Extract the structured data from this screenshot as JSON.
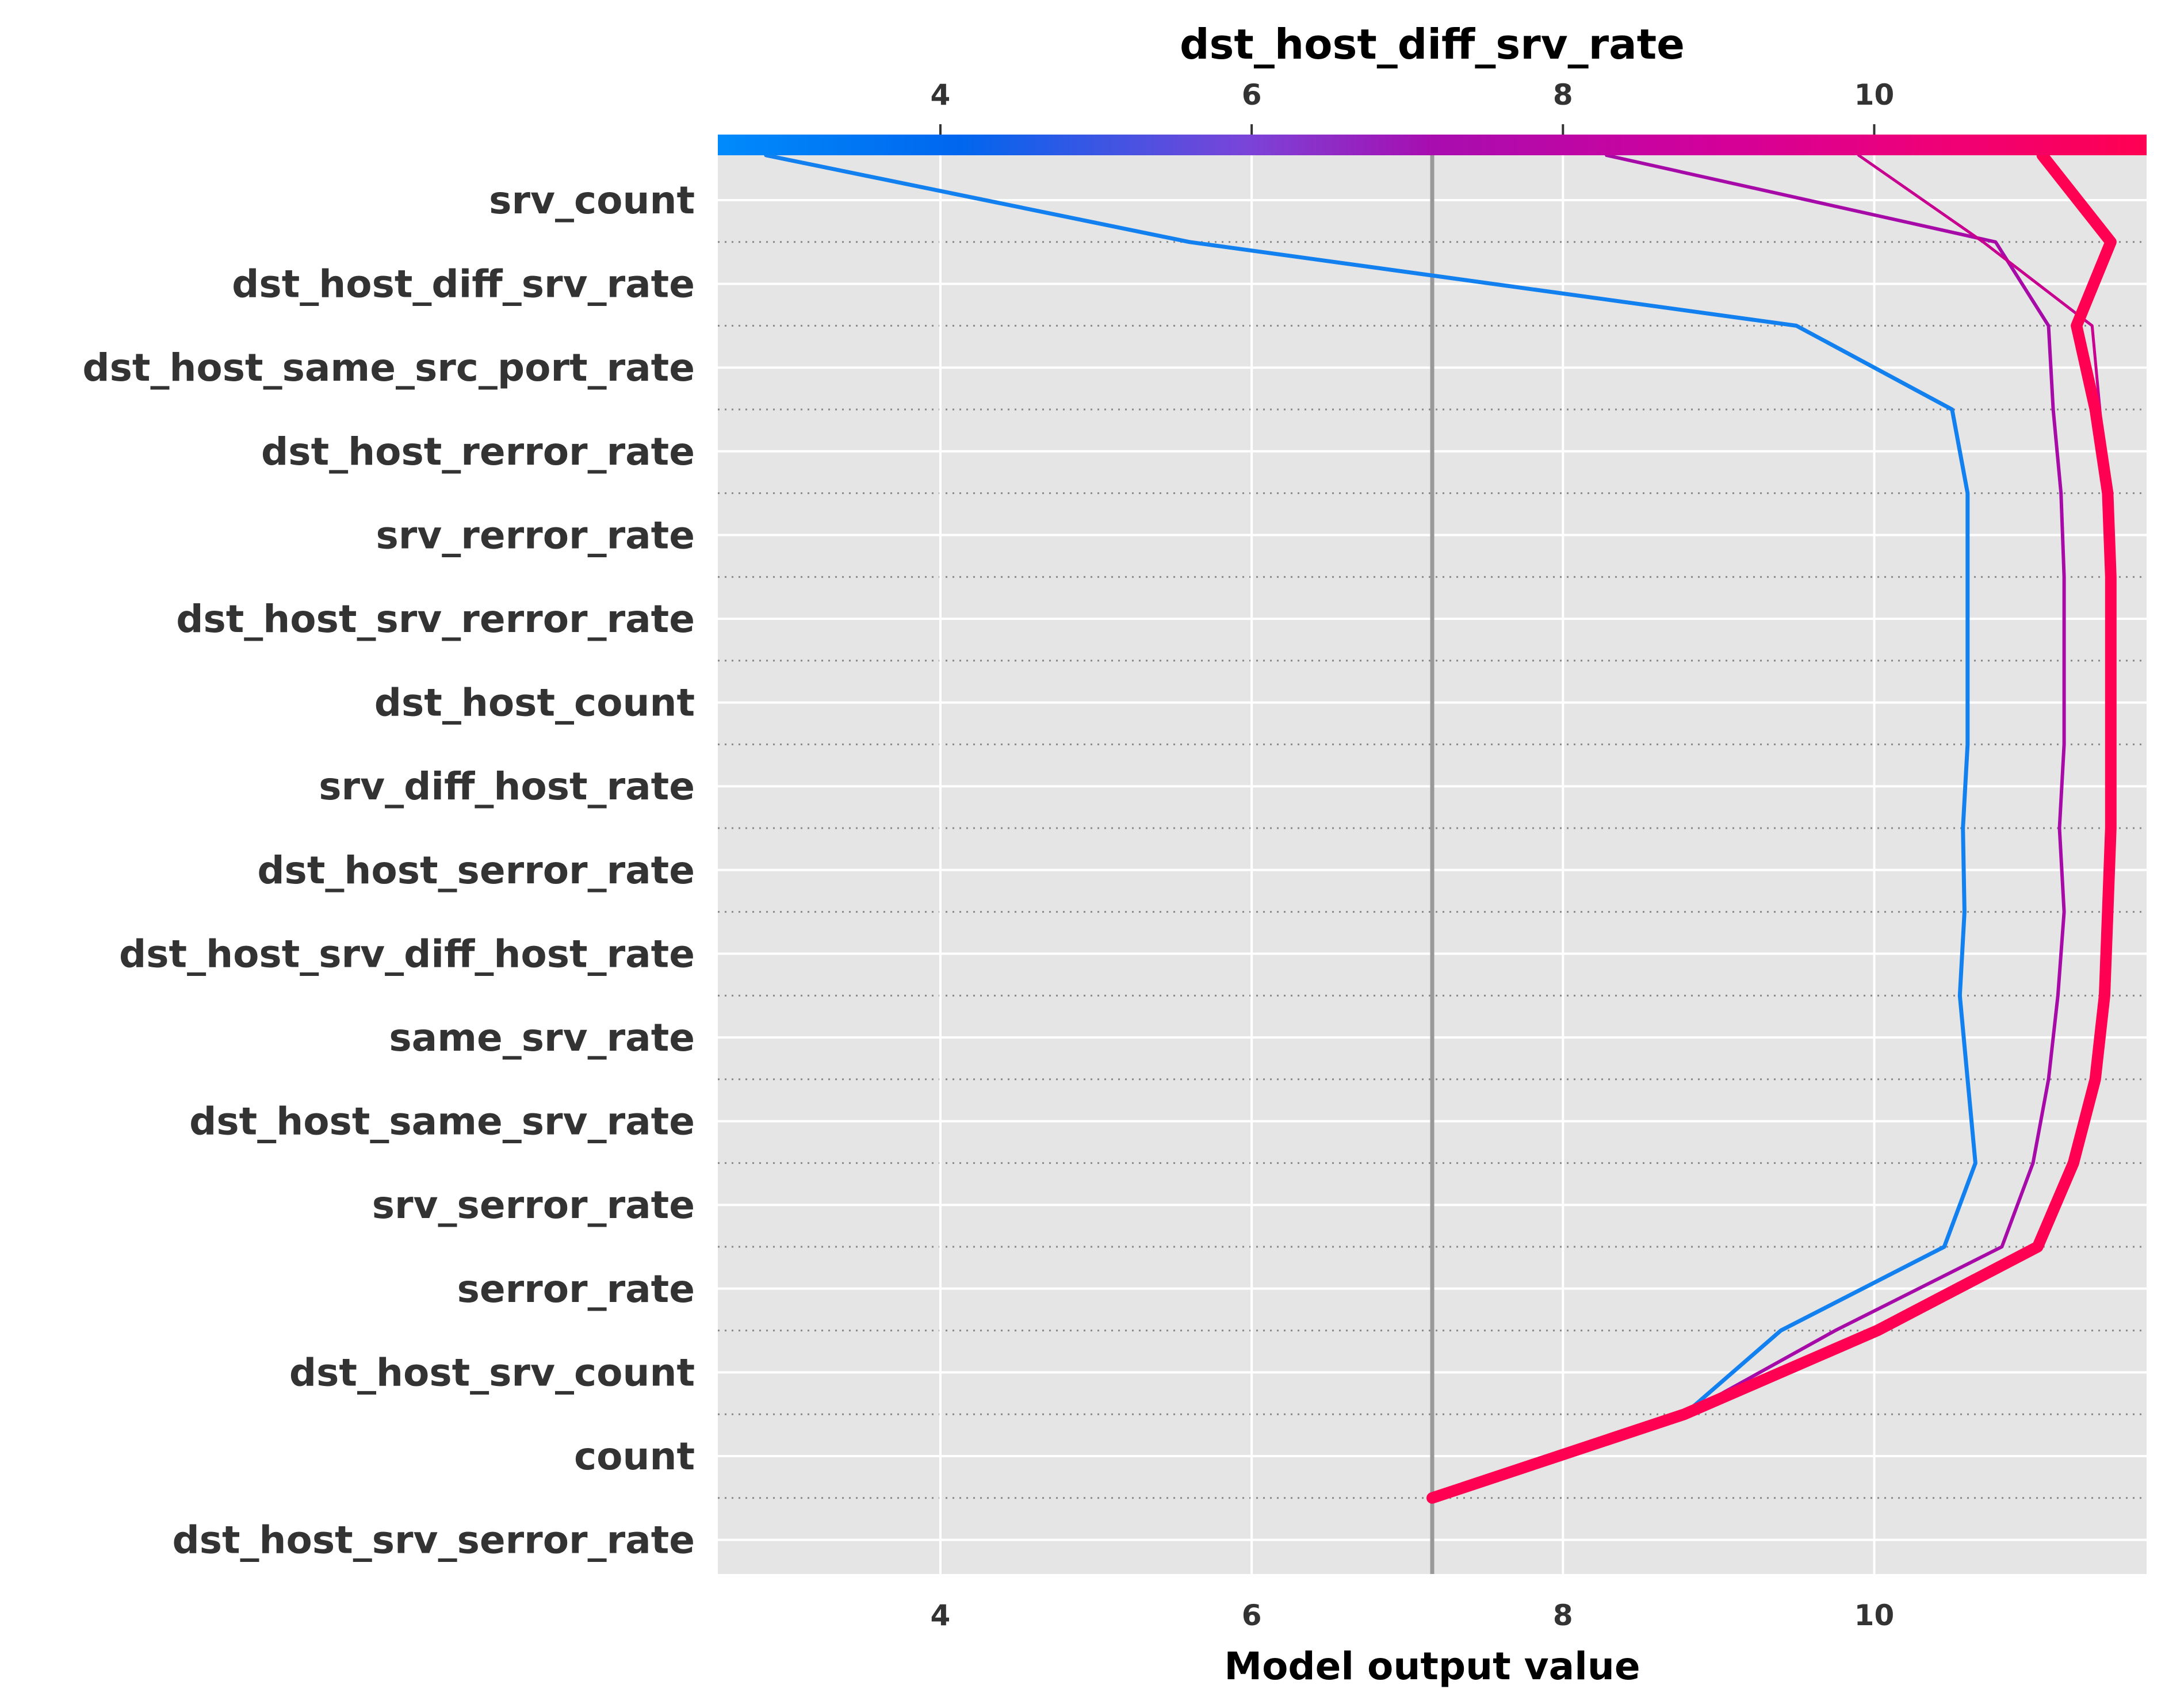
{
  "chart_data": {
    "type": "line",
    "title": "dst_host_diff_srv_rate",
    "xlabel": "Model output value",
    "ylabel": "",
    "xlim": [
      2.57,
      11.75
    ],
    "xticks": [
      4,
      6,
      8,
      10
    ],
    "top_ticks": [
      4,
      6,
      8,
      10
    ],
    "base_value": 7.16,
    "features": [
      "srv_count",
      "dst_host_diff_srv_rate",
      "dst_host_same_src_port_rate",
      "dst_host_rerror_rate",
      "srv_rerror_rate",
      "dst_host_srv_rerror_rate",
      "dst_host_count",
      "srv_diff_host_rate",
      "dst_host_serror_rate",
      "dst_host_srv_diff_host_rate",
      "same_srv_rate",
      "dst_host_same_srv_rate",
      "srv_serror_rate",
      "serror_rate",
      "dst_host_srv_count",
      "count",
      "dst_host_srv_serror_rate"
    ],
    "colorbar": {
      "range": [
        2.57,
        11.75
      ],
      "colors": [
        "#008bfb",
        "#ff0052"
      ]
    },
    "grid": true,
    "series": [
      {
        "color": "#1380f0",
        "width": 7,
        "x": [
          2.88,
          5.6,
          9.5,
          10.5,
          10.6,
          10.6,
          10.6,
          10.6,
          10.57,
          10.58,
          10.55,
          10.6,
          10.65,
          10.45,
          9.4,
          8.78,
          7.16
        ]
      },
      {
        "color": "#a60ba8",
        "width": 6,
        "x": [
          8.28,
          10.78,
          11.12,
          11.15,
          11.2,
          11.22,
          11.22,
          11.22,
          11.19,
          11.22,
          11.18,
          11.12,
          11.02,
          10.82,
          9.75,
          8.78,
          7.16
        ]
      },
      {
        "color": "#c80090",
        "width": 5,
        "x": [
          9.9,
          10.7,
          11.4,
          11.45,
          11.5,
          11.52,
          11.52,
          11.52,
          11.52,
          11.5,
          11.48,
          11.42,
          11.28,
          11.05,
          10.0,
          8.78,
          7.16
        ]
      },
      {
        "color": "#ff0052",
        "width": 20,
        "x": [
          11.08,
          11.52,
          11.3,
          11.42,
          11.5,
          11.52,
          11.52,
          11.52,
          11.52,
          11.5,
          11.48,
          11.42,
          11.28,
          11.05,
          10.02,
          8.78,
          7.16
        ]
      }
    ]
  }
}
